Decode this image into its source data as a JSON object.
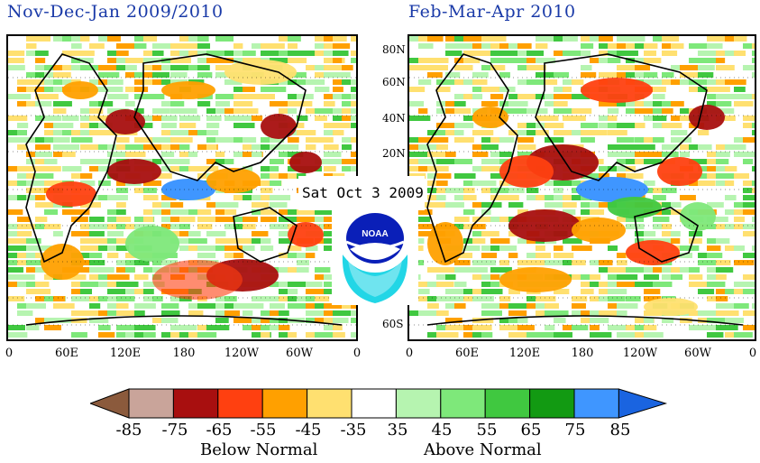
{
  "left_panel": {
    "title": "Nov-Dec-Jan 2009/2010",
    "lon_labels": [
      "0",
      "60E",
      "120E",
      "180",
      "120W",
      "60W",
      "0"
    ]
  },
  "right_panel": {
    "title": "Feb-Mar-Apr 2010",
    "lon_labels": [
      "0",
      "60E",
      "120E",
      "180",
      "120W",
      "60W",
      "0"
    ],
    "lat_labels": [
      "80N",
      "60N",
      "40N",
      "20N",
      "60S"
    ]
  },
  "date_stamp": "Sat Oct 3 2009",
  "logo": {
    "icon": "noaa-logo-icon",
    "text": "NOAA"
  },
  "legend": {
    "ticks": [
      "-85",
      "-75",
      "-65",
      "-55",
      "-45",
      "-35",
      "35",
      "45",
      "55",
      "65",
      "75",
      "85"
    ],
    "colors": [
      "#8b5a3c",
      "#c9a49a",
      "#a80f0f",
      "#ff4010",
      "#ffa000",
      "#ffe070",
      "#ffffff",
      "#b6f4b0",
      "#7ee87a",
      "#40c840",
      "#129a12",
      "#3f96ff",
      "#1a64e0"
    ],
    "below_label": "Below Normal",
    "above_label": "Above Normal"
  }
}
